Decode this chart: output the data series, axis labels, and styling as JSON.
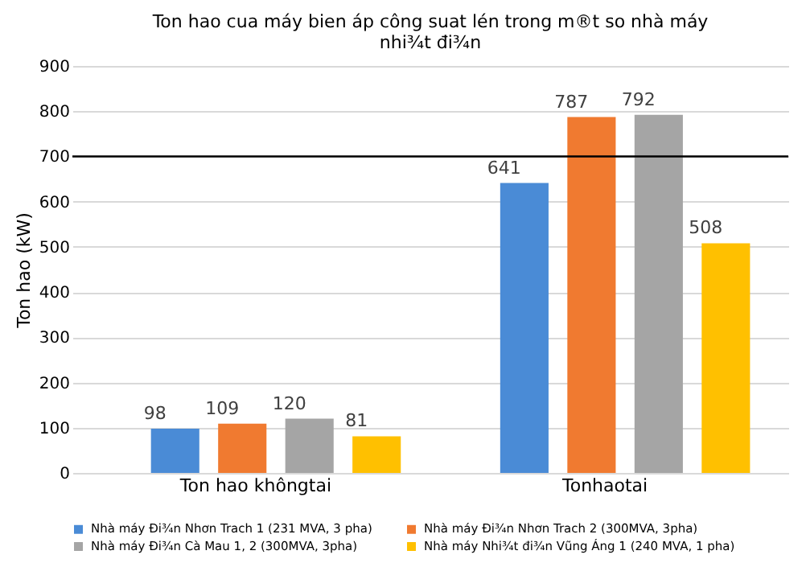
{
  "chart_data": {
    "type": "bar",
    "title": [
      "Ton hao cua  máy bien  áp công  suat  lén trong  m®t so nhà  máy",
      "nhi¾t  đi¾n"
    ],
    "ylabel": "Ton hao (kW)",
    "categories": [
      "Ton hao khôngtai",
      "Tonhaotai"
    ],
    "series": [
      {
        "name": "Nhà máy  Đi¾n  Nhơn  Trach  1 (231  MVA,  3 pha)",
        "color": "#4a8bd6",
        "values": [
          98,
          641
        ]
      },
      {
        "name": "Nhà máy  Đi¾n  Nhơn  Trach  2 (300MVA,  3pha)",
        "color": "#f07a30",
        "values": [
          109,
          787
        ]
      },
      {
        "name": "Nhà máy  Đi¾n  Cà Mau 1, 2 (300MVA,  3pha)",
        "color": "#a5a5a5",
        "values": [
          120,
          792
        ]
      },
      {
        "name": "Nhà máy  Nhi¾t  đi¾n  Vũng Áng 1 (240  MVA,  1 pha)",
        "color": "#ffc000",
        "values": [
          81,
          508
        ]
      }
    ],
    "ylim": [
      0,
      900
    ],
    "yticks": [
      0,
      100,
      200,
      300,
      400,
      500,
      600,
      700,
      800,
      900
    ],
    "ref_lines": [
      {
        "axis": "y",
        "value": 700,
        "color": "#000000"
      }
    ],
    "grid": "y",
    "legend": "bottom",
    "data_labels": true
  }
}
